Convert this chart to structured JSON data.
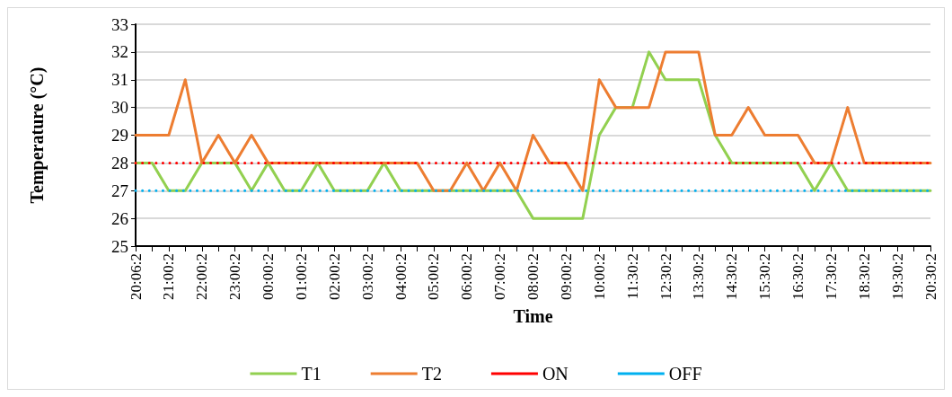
{
  "chart_data": {
    "type": "line",
    "xlabel": "Time",
    "ylabel": "Temperature (°C)",
    "categories": [
      "20:06:2",
      null,
      "21:00:2",
      null,
      "22:00:2",
      null,
      "23:00:2",
      null,
      "00:00:2",
      null,
      "01:00:2",
      null,
      "02:00:2",
      null,
      "03:00:2",
      null,
      "04:00:2",
      null,
      "05:00:2",
      null,
      "06:00:2",
      null,
      "07:00:2",
      null,
      "08:00:2",
      null,
      "09:00:2",
      null,
      "10:00:2",
      null,
      "11:30:2",
      null,
      "12:30:2",
      null,
      "13:30:2",
      null,
      "14:30:2",
      null,
      "15:30:2",
      null,
      "16:30:2",
      null,
      "17:30:2",
      null,
      "18:30:2",
      null,
      "19:30:2",
      null,
      "20:30:2"
    ],
    "series": [
      {
        "name": "T1",
        "color": "#92d050",
        "values": [
          28,
          28,
          27,
          27,
          28,
          28,
          28,
          27,
          28,
          27,
          27,
          28,
          27,
          27,
          27,
          28,
          27,
          27,
          27,
          27,
          27,
          27,
          27,
          27,
          26,
          26,
          26,
          26,
          29,
          30,
          30,
          32,
          31,
          31,
          31,
          29,
          28,
          28,
          28,
          28,
          28,
          27,
          28,
          27,
          27,
          27,
          27,
          27,
          27
        ]
      },
      {
        "name": "T2",
        "color": "#ed7d31",
        "values": [
          29,
          29,
          29,
          31,
          28,
          29,
          28,
          29,
          28,
          28,
          28,
          28,
          28,
          28,
          28,
          28,
          28,
          28,
          27,
          27,
          28,
          27,
          28,
          27,
          29,
          28,
          28,
          27,
          31,
          30,
          30,
          30,
          32,
          32,
          32,
          29,
          29,
          30,
          29,
          29,
          29,
          28,
          28,
          30,
          28,
          28,
          28,
          28,
          28
        ]
      },
      {
        "name": "ON",
        "color": "#ff0000",
        "line_style": "dotted",
        "values": [
          28,
          28,
          28,
          28,
          28,
          28,
          28,
          28,
          28,
          28,
          28,
          28,
          28,
          28,
          28,
          28,
          28,
          28,
          28,
          28,
          28,
          28,
          28,
          28,
          28,
          28,
          28,
          28,
          28,
          28,
          28,
          28,
          28,
          28,
          28,
          28,
          28,
          28,
          28,
          28,
          28,
          28,
          28,
          28,
          28,
          28,
          28,
          28,
          28
        ]
      },
      {
        "name": "OFF",
        "color": "#00b0f0",
        "line_style": "dotted",
        "values": [
          27,
          27,
          27,
          27,
          27,
          27,
          27,
          27,
          27,
          27,
          27,
          27,
          27,
          27,
          27,
          27,
          27,
          27,
          27,
          27,
          27,
          27,
          27,
          27,
          27,
          27,
          27,
          27,
          27,
          27,
          27,
          27,
          27,
          27,
          27,
          27,
          27,
          27,
          27,
          27,
          27,
          27,
          27,
          27,
          27,
          27,
          27,
          27,
          27
        ]
      }
    ],
    "ylim": [
      25,
      33
    ],
    "yticks": [
      25,
      26,
      27,
      28,
      29,
      30,
      31,
      32,
      33
    ],
    "grid": "y",
    "legend": "bottom",
    "marker": "none",
    "line_style": "solid"
  }
}
